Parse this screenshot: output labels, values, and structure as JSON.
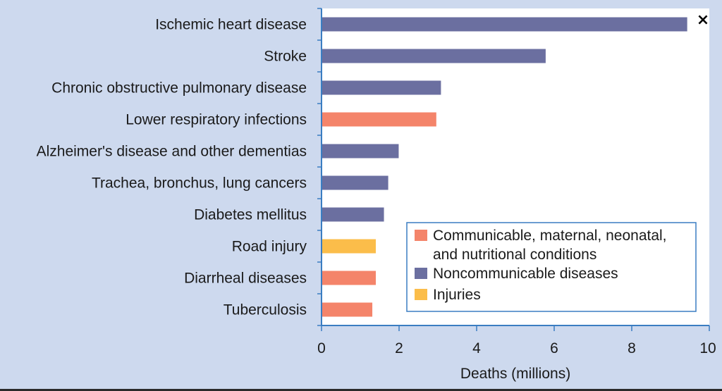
{
  "chart_data": {
    "type": "bar",
    "orientation": "horizontal",
    "categories": [
      "Ischemic heart disease",
      "Stroke",
      "Chronic obstructive pulmonary disease",
      "Lower respiratory infections",
      "Alzheimer's disease and other dementias",
      "Trachea, bronchus, lung cancers",
      "Diabetes mellitus",
      "Road injury",
      "Diarrheal diseases",
      "Tuberculosis"
    ],
    "values": [
      9.43,
      5.78,
      3.08,
      2.96,
      1.99,
      1.72,
      1.61,
      1.4,
      1.4,
      1.31
    ],
    "groups": [
      "Noncommunicable diseases",
      "Noncommunicable diseases",
      "Noncommunicable diseases",
      "Communicable, maternal, neonatal, and nutritional conditions",
      "Noncommunicable diseases",
      "Noncommunicable diseases",
      "Noncommunicable diseases",
      "Injuries",
      "Communicable, maternal, neonatal, and nutritional conditions",
      "Communicable, maternal, neonatal, and nutritional conditions"
    ],
    "xlabel": "Deaths (millions)",
    "xlim": [
      0,
      10
    ],
    "xticks": [
      "0",
      "2",
      "4",
      "6",
      "8",
      "10"
    ],
    "grid": false,
    "legend_position": "bottom-right",
    "legend": [
      {
        "lines": [
          "Communicable, maternal, neonatal,",
          "and nutritional conditions"
        ],
        "color": "#f4846a"
      },
      {
        "lines": [
          "Noncommunicable diseases"
        ],
        "color": "#6b6fa0"
      },
      {
        "lines": [
          "Injuries"
        ],
        "color": "#fbbd4a"
      }
    ],
    "group_colors": {
      "Communicable, maternal, neonatal, and nutritional conditions": "#f4846a",
      "Noncommunicable diseases": "#6b6fa0",
      "Injuries": "#fbbd4a"
    }
  },
  "controls": {
    "close_label": "×"
  }
}
